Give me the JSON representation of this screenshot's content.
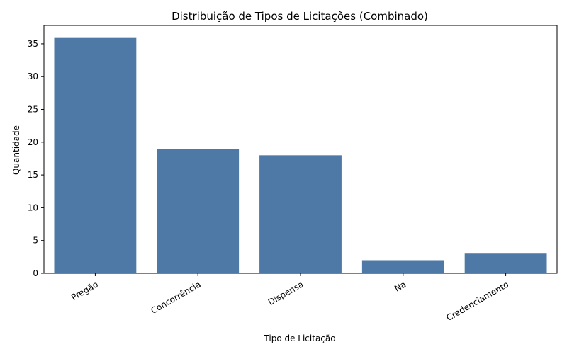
{
  "chart_data": {
    "type": "bar",
    "title": "Distribuição de Tipos de Licitações (Combinado)",
    "xlabel": "Tipo de Licitação",
    "ylabel": "Quantidade",
    "categories": [
      "Pregão",
      "Concorrência",
      "Dispensa",
      "Na",
      "Credenciamento"
    ],
    "values": [
      36,
      19,
      18,
      2,
      3
    ],
    "ylim": [
      0,
      37.8
    ],
    "yticks": [
      0,
      5,
      10,
      15,
      20,
      25,
      30,
      35
    ],
    "bar_color": "#4e79a7",
    "grid": false,
    "x_tick_rotation": 30
  }
}
